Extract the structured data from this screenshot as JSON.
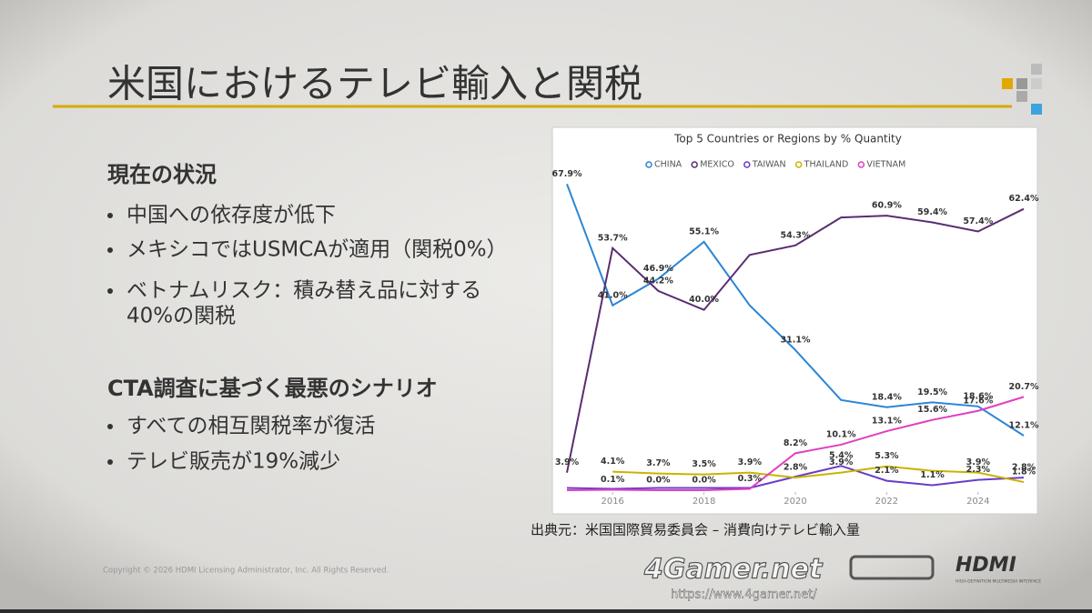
{
  "slide": {
    "title": "米国におけるテレビ輸入と関税",
    "section1": {
      "heading": "現在の状況",
      "bullets": [
        "中国への依存度が低下",
        "メキシコではUSMCAが適用（関税0%）",
        "ベトナムリスク：積み替え品に対する",
        "40%の関税"
      ]
    },
    "section2": {
      "heading": "CTA調査に基づく最悪のシナリオ",
      "bullets": [
        "すべての相互関税率が復活",
        "テレビ販売が19%減少"
      ]
    },
    "source": "出典元：米国国際貿易委員会 – 消費向けテレビ輸入量",
    "copyright": "Copyright © 2026 HDMI Licensing Administrator, Inc.  All Rights Reserved.",
    "logo": "HDMI",
    "logo_sub": "HIGH-DEFINITION MULTIMEDIA INTERFACE",
    "watermark": "4Gamer.net",
    "watermark_url": "https://www.4gamer.net/"
  },
  "chart_data": {
    "type": "line",
    "title": "Top 5 Countries or Regions by % Quantity",
    "x": [
      2015,
      2016,
      2017,
      2018,
      2019,
      2020,
      2021,
      2022,
      2023,
      2024,
      2025
    ],
    "xlim": [
      2015,
      2025
    ],
    "xticks": [
      2016,
      2018,
      2020,
      2022,
      2024
    ],
    "ylim": [
      0,
      70
    ],
    "grid": false,
    "legend": "top",
    "series": [
      {
        "name": "CHINA",
        "color": "#2b86d6",
        "values": [
          67.9,
          41.0,
          46.9,
          55.1,
          41.0,
          31.1,
          20.0,
          18.4,
          19.5,
          18.6,
          12.1
        ],
        "value_labels": [
          "67.9%",
          "41.0%",
          "46.9%",
          "55.1%",
          null,
          "31.1%",
          null,
          "18.4%",
          "19.5%",
          "18.6%",
          "12.1%"
        ]
      },
      {
        "name": "MEXICO",
        "color": "#5a2d70",
        "values": [
          3.9,
          53.7,
          44.2,
          40.0,
          52.2,
          54.3,
          60.5,
          60.9,
          59.4,
          57.4,
          62.4
        ],
        "value_labels": [
          "3.9%",
          "53.7%",
          "44.2%",
          "40.0%",
          null,
          "54.3%",
          null,
          "60.9%",
          "59.4%",
          "57.4%",
          "62.4%"
        ]
      },
      {
        "name": "TAIWAN",
        "color": "#6a3cc8",
        "values": [
          0.5,
          0.3,
          0.5,
          0.5,
          0.5,
          3.0,
          5.4,
          2.1,
          1.1,
          2.3,
          2.8
        ],
        "value_labels": [
          null,
          null,
          null,
          null,
          null,
          null,
          "5.4%",
          "2.1%",
          "1.1%",
          "2.3%",
          "2.8%"
        ]
      },
      {
        "name": "THAILAND",
        "color": "#c9b400",
        "values": [
          null,
          4.1,
          3.7,
          3.5,
          3.9,
          2.8,
          3.9,
          5.3,
          4.3,
          3.9,
          1.8
        ],
        "value_labels": [
          null,
          "4.1%",
          "3.7%",
          "3.5%",
          "3.9%",
          "2.8%",
          "3.9%",
          "5.3%",
          null,
          "3.9%",
          "1.8%"
        ]
      },
      {
        "name": "VIETNAM",
        "color": "#e03fc2",
        "values": [
          0.0,
          0.1,
          0.0,
          0.0,
          0.3,
          8.2,
          10.1,
          13.1,
          15.6,
          17.6,
          20.7
        ],
        "value_labels": [
          null,
          "0.1%",
          "0.0%",
          "0.0%",
          "0.3%",
          "8.2%",
          "10.1%",
          "13.1%",
          "15.6%",
          "17.6%",
          "20.7%"
        ]
      }
    ]
  }
}
